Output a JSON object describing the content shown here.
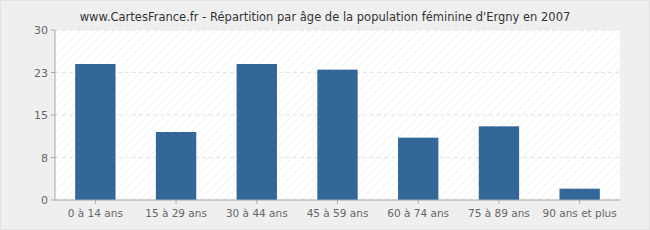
{
  "chart_data": {
    "type": "bar",
    "title": "www.CartesFrance.fr - Répartition par âge de la population féminine d'Ergny en 2007",
    "categories": [
      "0 à 14 ans",
      "15 à 29 ans",
      "30 à 44 ans",
      "45 à 59 ans",
      "60 à 74 ans",
      "75 à 89 ans",
      "90 ans et plus"
    ],
    "values": [
      24,
      12,
      24,
      23,
      11,
      13,
      2
    ],
    "color": "#336699",
    "ylim": [
      0,
      30
    ],
    "yticks": [
      0,
      {
        "value": 7.5,
        "label": "8"
      },
      15,
      {
        "value": 22.5,
        "label": "23"
      },
      30
    ],
    "grid": true
  }
}
